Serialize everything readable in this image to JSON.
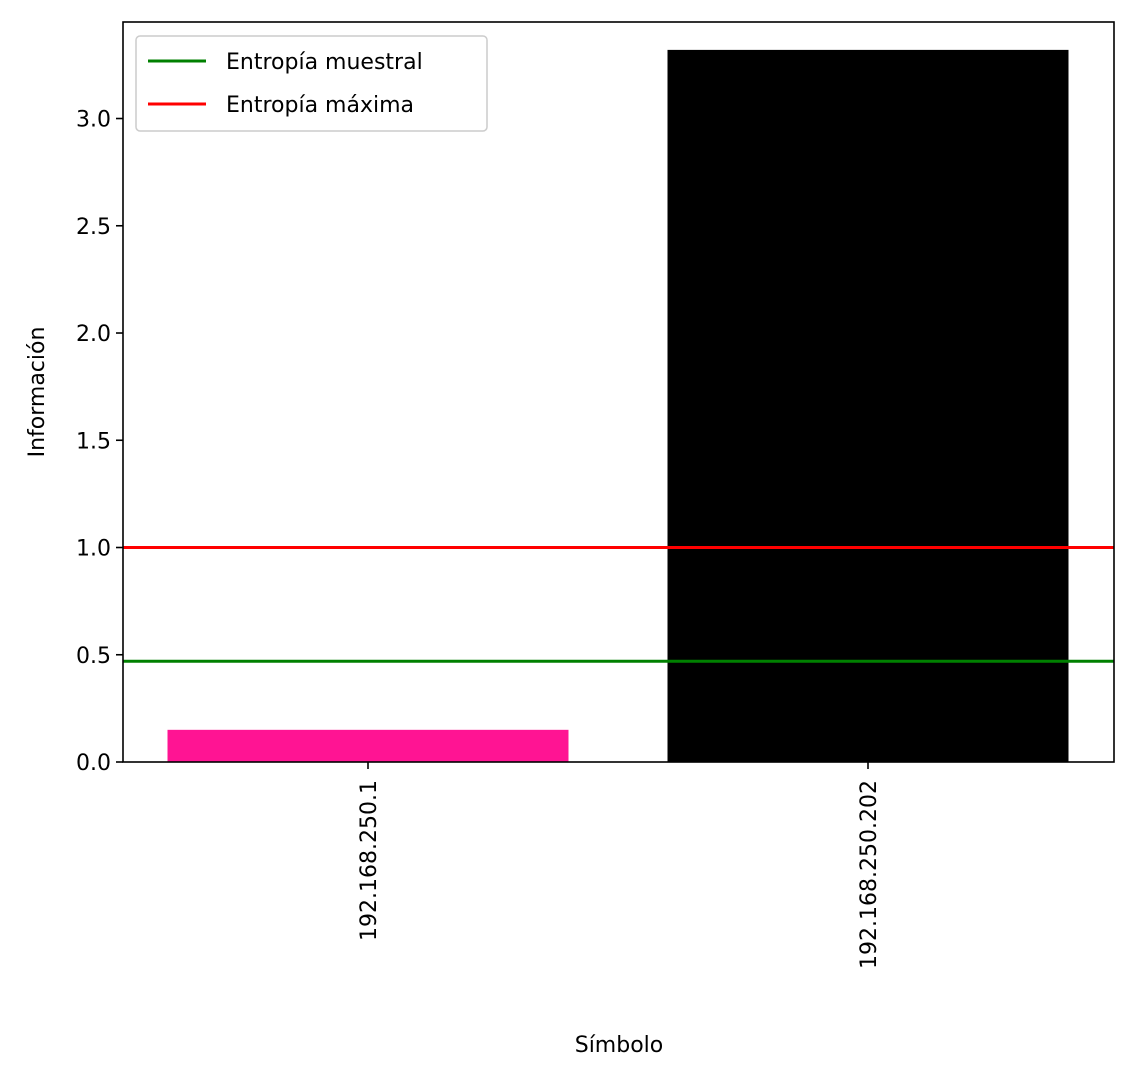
{
  "chart_data": {
    "type": "bar",
    "categories": [
      "192.168.250.1",
      "192.168.250.202"
    ],
    "values": [
      0.15,
      3.32
    ],
    "bar_colors": [
      "#ff1493",
      "#000000"
    ],
    "xlabel": "Símbolo",
    "ylabel": "Información",
    "ylim": [
      0,
      3.45
    ],
    "yticks": [
      "0.0",
      "0.5",
      "1.0",
      "1.5",
      "2.0",
      "2.5",
      "3.0"
    ],
    "ytick_values": [
      0,
      0.5,
      1.0,
      1.5,
      2.0,
      2.5,
      3.0
    ],
    "reference_lines": [
      {
        "name": "Entropía muestral",
        "y": 0.47,
        "color": "#008000"
      },
      {
        "name": "Entropía máxima",
        "y": 1.0,
        "color": "#ff0000"
      }
    ],
    "legend_position": "top-left",
    "grid": false
  }
}
